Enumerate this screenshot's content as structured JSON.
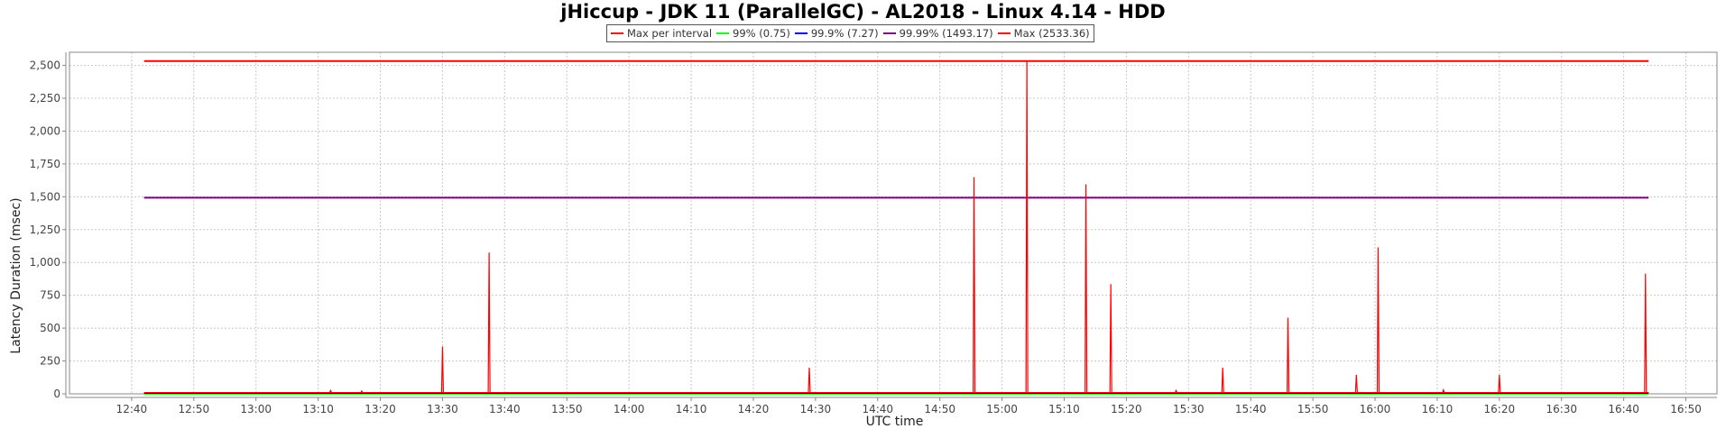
{
  "chart_data": {
    "type": "line",
    "title": "jHiccup - JDK 11 (ParallelGC) - AL2018 - Linux 4.14 - HDD",
    "xlabel": "UTC time",
    "ylabel": "Latency Duration (msec)",
    "ylim": [
      0,
      2600
    ],
    "xlim": [
      "12:30",
      "16:55"
    ],
    "grid": true,
    "legend_placement": "top-center",
    "x_ticks": [
      "12:40",
      "12:50",
      "13:00",
      "13:10",
      "13:20",
      "13:30",
      "13:40",
      "13:50",
      "14:00",
      "14:10",
      "14:20",
      "14:30",
      "14:40",
      "14:50",
      "15:00",
      "15:10",
      "15:20",
      "15:30",
      "15:40",
      "15:50",
      "16:00",
      "16:10",
      "16:20",
      "16:30",
      "16:40",
      "16:50"
    ],
    "y_ticks": [
      "0",
      "250",
      "500",
      "750",
      "1,000",
      "1,250",
      "1,500",
      "1,750",
      "2,000",
      "2,250",
      "2,500"
    ],
    "y_tick_values": [
      0,
      250,
      500,
      750,
      1000,
      1250,
      1500,
      1750,
      2000,
      2250,
      2500
    ],
    "series": [
      {
        "name": "Max per interval",
        "color": "#ff0000",
        "kind": "spikes",
        "baseline": 10,
        "x_range": [
          "12:42",
          "16:44"
        ],
        "points": [
          {
            "x": "13:12",
            "y": 25
          },
          {
            "x": "13:17",
            "y": 22
          },
          {
            "x": "13:30",
            "y": 360
          },
          {
            "x": "13:37:30",
            "y": 1075
          },
          {
            "x": "14:29",
            "y": 200
          },
          {
            "x": "14:55:30",
            "y": 1650
          },
          {
            "x": "15:04",
            "y": 2533
          },
          {
            "x": "15:13:30",
            "y": 1595
          },
          {
            "x": "15:17:30",
            "y": 835
          },
          {
            "x": "15:28",
            "y": 25
          },
          {
            "x": "15:35:30",
            "y": 200
          },
          {
            "x": "15:46",
            "y": 580
          },
          {
            "x": "15:57",
            "y": 145
          },
          {
            "x": "16:00:30",
            "y": 1115
          },
          {
            "x": "16:11",
            "y": 30
          },
          {
            "x": "16:20",
            "y": 145
          },
          {
            "x": "16:43:30",
            "y": 915
          }
        ]
      },
      {
        "name": "99% (0.75)",
        "color": "#00ff00",
        "kind": "constant",
        "value": 0.75,
        "x_range": [
          "12:42",
          "16:44"
        ]
      },
      {
        "name": "99.9% (7.27)",
        "color": "#0000ff",
        "kind": "constant",
        "value": 7.27,
        "x_range": [
          "12:42",
          "16:44"
        ]
      },
      {
        "name": "99.99% (1493.17)",
        "color": "#800080",
        "kind": "constant",
        "value": 1493.17,
        "x_range": [
          "12:42",
          "16:44"
        ]
      },
      {
        "name": "Max (2533.36)",
        "color": "#ff0000",
        "kind": "constant",
        "value": 2533.36,
        "x_range": [
          "12:42",
          "16:44"
        ]
      }
    ]
  }
}
